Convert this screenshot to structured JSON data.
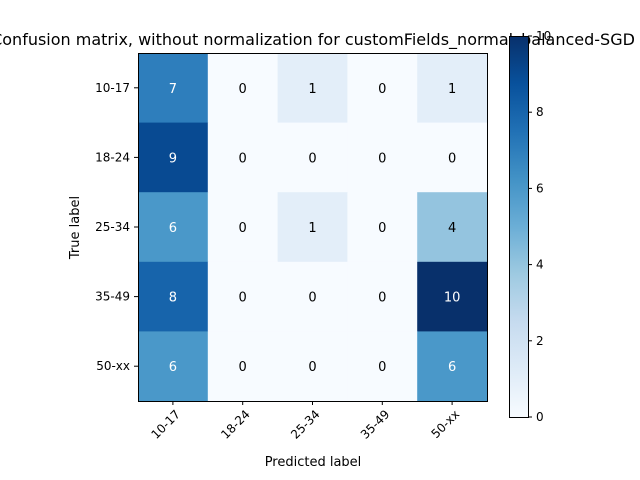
{
  "chart_data": {
    "type": "heatmap",
    "title": "Confusion matrix, without normalization for customFields_normal_balanced-SGD",
    "xlabel": "Predicted label",
    "ylabel": "True label",
    "x_categories": [
      "10-17",
      "18-24",
      "25-34",
      "35-49",
      "50-xx"
    ],
    "y_categories": [
      "10-17",
      "18-24",
      "25-34",
      "35-49",
      "50-xx"
    ],
    "matrix": [
      [
        7,
        0,
        1,
        0,
        1
      ],
      [
        9,
        0,
        0,
        0,
        0
      ],
      [
        6,
        0,
        1,
        0,
        4
      ],
      [
        8,
        0,
        0,
        0,
        10
      ],
      [
        6,
        0,
        0,
        0,
        6
      ]
    ],
    "colormap": "Blues",
    "colorbar": {
      "range": [
        0,
        10
      ],
      "ticks": [
        "0",
        "2",
        "4",
        "6",
        "8",
        "10"
      ]
    },
    "text_color_dark_cells": "#ffffff",
    "text_color_light_cells": "#000000",
    "tick_label_rotation": 45
  }
}
